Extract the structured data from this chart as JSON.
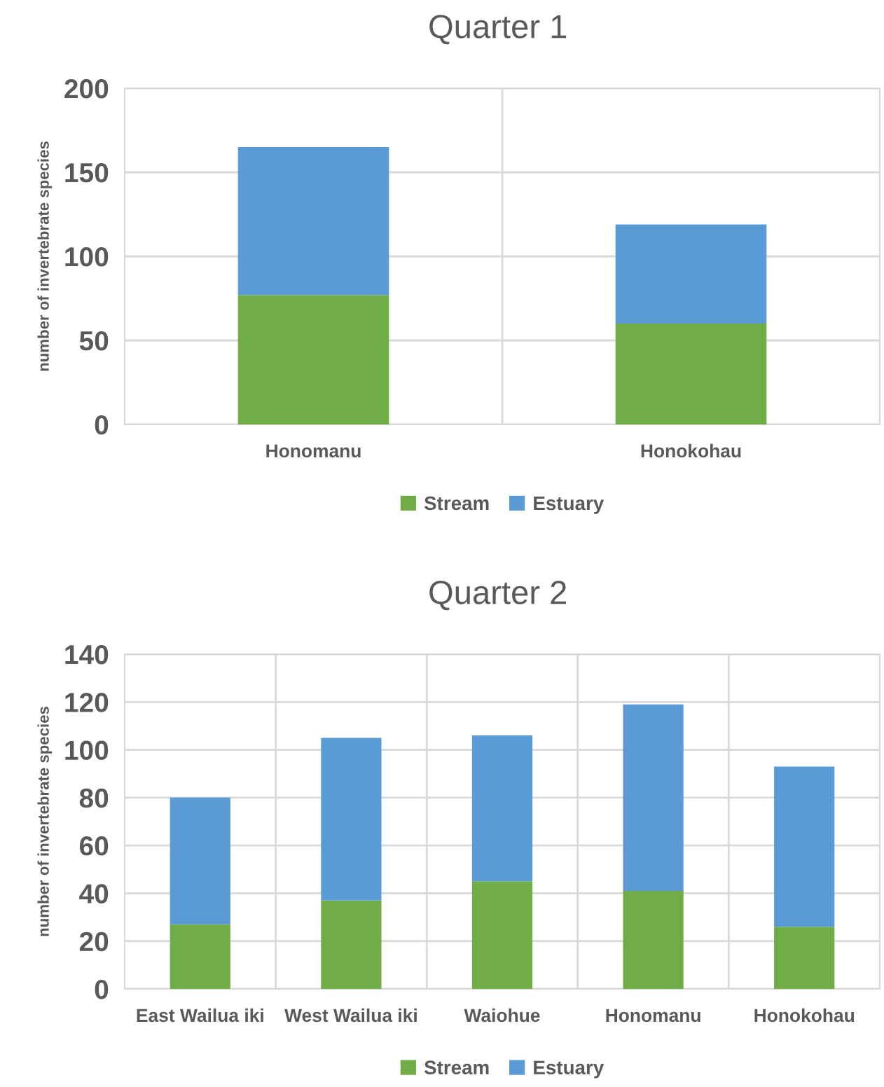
{
  "chart_data": [
    {
      "type": "bar",
      "title": "Quarter 1",
      "ylabel": "number of invertebrate species",
      "categories": [
        "Honomanu",
        "Honokohau"
      ],
      "stacked": true,
      "series": [
        {
          "name": "Stream",
          "color": "#70ad47",
          "values": [
            77,
            60
          ]
        },
        {
          "name": "Estuary",
          "color": "#5b9bd5",
          "values": [
            88,
            59
          ]
        }
      ],
      "ylim": [
        0,
        200
      ],
      "yticks": [
        0,
        50,
        100,
        150,
        200
      ],
      "grid": true,
      "legend": "bottom"
    },
    {
      "type": "bar",
      "title": "Quarter 2",
      "ylabel": "number of invertebrate species",
      "categories": [
        "East Wailua iki",
        "West Wailua iki",
        "Waiohue",
        "Honomanu",
        "Honokohau"
      ],
      "stacked": true,
      "series": [
        {
          "name": "Stream",
          "color": "#70ad47",
          "values": [
            27,
            37,
            45,
            41,
            26
          ]
        },
        {
          "name": "Estuary",
          "color": "#5b9bd5",
          "values": [
            53,
            68,
            61,
            78,
            67
          ]
        }
      ],
      "ylim": [
        0,
        140
      ],
      "yticks": [
        0,
        20,
        40,
        60,
        80,
        100,
        120,
        140
      ],
      "grid": true,
      "legend": "bottom"
    }
  ]
}
